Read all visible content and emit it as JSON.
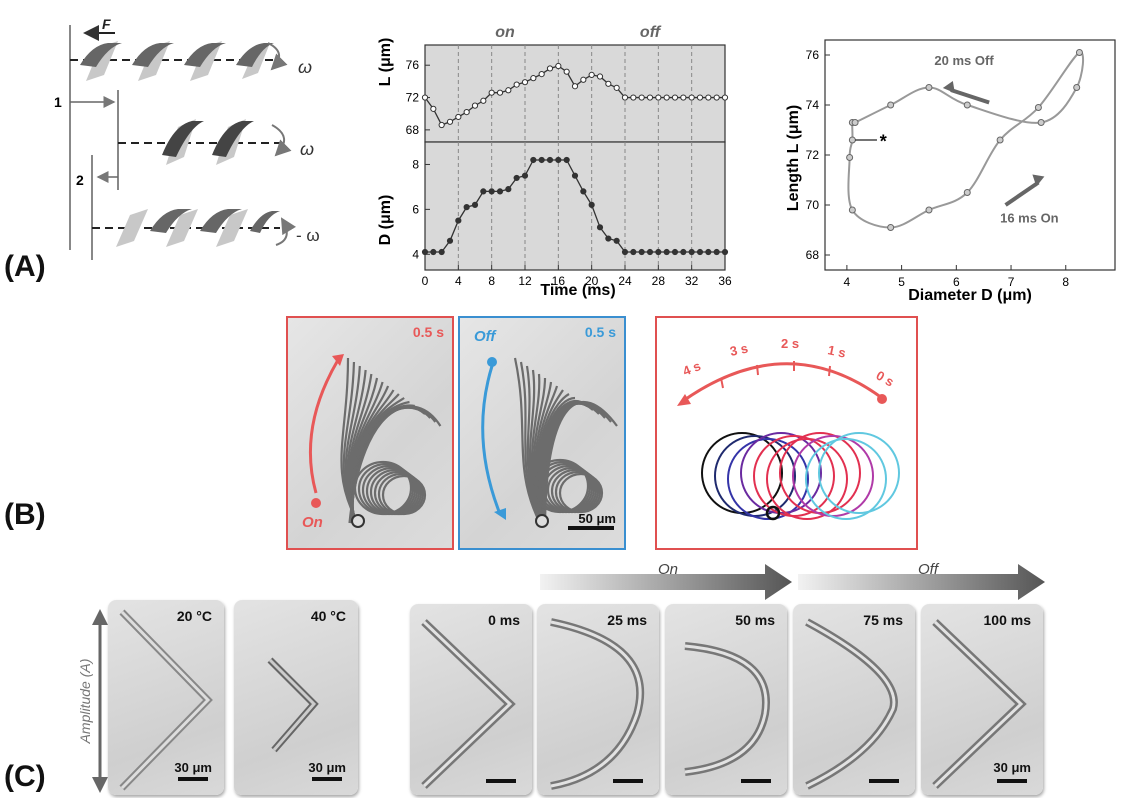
{
  "panel_labels": {
    "a": "(A)",
    "b": "(B)",
    "c": "(C)"
  },
  "schematic": {
    "force": "F",
    "omega": "ω",
    "neg_omega": "- ω",
    "step1": "1",
    "step2": "2"
  },
  "chart_data": [
    {
      "type": "line",
      "title": "",
      "xlabel": "",
      "ylabel": "L (μm)",
      "annotations": [
        "on",
        "off"
      ],
      "xlim": [
        0,
        36
      ],
      "ylim": [
        66.5,
        78.5
      ],
      "yticks": [
        68,
        72,
        76
      ],
      "x": [
        0,
        1,
        2,
        3,
        4,
        5,
        6,
        7,
        8,
        9,
        10,
        11,
        12,
        13,
        14,
        15,
        16,
        17,
        18,
        19,
        20,
        21,
        22,
        23,
        24,
        25,
        26,
        27,
        28,
        29,
        30,
        31,
        32,
        33,
        34,
        35,
        36
      ],
      "series": [
        {
          "values": [
            72.0,
            70.6,
            68.6,
            69.0,
            69.6,
            70.2,
            71.0,
            71.6,
            72.6,
            72.6,
            72.9,
            73.6,
            73.9,
            74.4,
            74.9,
            75.6,
            75.9,
            75.2,
            73.4,
            74.2,
            74.8,
            74.6,
            73.7,
            73.2,
            72.0,
            72.0,
            72.0,
            72.0,
            72.0,
            72.0,
            72.0,
            72.0,
            72.0,
            72.0,
            72.0,
            72.0,
            72.0
          ]
        }
      ]
    },
    {
      "type": "line",
      "title": "",
      "xlabel": "Time (ms)",
      "ylabel": "D (μm)",
      "xlim": [
        0,
        36
      ],
      "ylim": [
        3.3,
        9.0
      ],
      "xticks": [
        0,
        4,
        8,
        12,
        16,
        20,
        24,
        28,
        32,
        36
      ],
      "yticks": [
        4,
        6,
        8
      ],
      "x": [
        0,
        1,
        2,
        3,
        4,
        5,
        6,
        7,
        8,
        9,
        10,
        11,
        12,
        13,
        14,
        15,
        16,
        17,
        18,
        19,
        20,
        21,
        22,
        23,
        24,
        25,
        26,
        27,
        28,
        29,
        30,
        31,
        32,
        33,
        34,
        35,
        36
      ],
      "series": [
        {
          "values": [
            4.1,
            4.1,
            4.1,
            4.6,
            5.5,
            6.1,
            6.2,
            6.8,
            6.8,
            6.8,
            6.9,
            7.4,
            7.5,
            8.2,
            8.2,
            8.2,
            8.2,
            8.2,
            7.5,
            6.8,
            6.2,
            5.2,
            4.7,
            4.6,
            4.1,
            4.1,
            4.1,
            4.1,
            4.1,
            4.1,
            4.1,
            4.1,
            4.1,
            4.1,
            4.1,
            4.1,
            4.1
          ]
        }
      ]
    },
    {
      "type": "scatter",
      "title": "",
      "xlabel": "Diameter D (μm)",
      "ylabel": "Length L (μm)",
      "xlim": [
        3.6,
        8.9
      ],
      "ylim": [
        67.4,
        76.6
      ],
      "xticks": [
        4,
        5,
        6,
        7,
        8
      ],
      "yticks": [
        68,
        70,
        72,
        74,
        76
      ],
      "annotations": [
        "20 ms Off",
        "16 ms On",
        "*"
      ],
      "x": [
        4.1,
        4.1,
        4.05,
        4.1,
        4.8,
        5.5,
        6.2,
        6.8,
        7.5,
        8.25,
        8.2,
        7.55,
        6.2,
        5.5,
        4.8,
        4.15
      ],
      "series": [
        {
          "values": [
            73.3,
            72.6,
            71.9,
            69.8,
            69.1,
            69.8,
            70.5,
            72.6,
            73.9,
            76.1,
            74.7,
            73.3,
            74.0,
            74.7,
            74.0,
            73.3
          ]
        }
      ]
    }
  ],
  "panel_b": {
    "time_1": "0.5 s",
    "time_2": "0.5 s",
    "on": "On",
    "off": "Off",
    "scale": "50 μm",
    "timeline": [
      "4 s",
      "3 s",
      "2 s",
      "1 s",
      "0 s"
    ]
  },
  "panel_c": {
    "temp_1": "20 °C",
    "temp_2": "40 °C",
    "amplitude": "Amplitude (A)",
    "scale_1": "30 μm",
    "scale_2": "30 μm",
    "scale_3": "30 μm",
    "arrow_on": "On",
    "arrow_off": "Off",
    "times": [
      "0 ms",
      "25 ms",
      "50 ms",
      "75 ms",
      "100 ms"
    ]
  }
}
